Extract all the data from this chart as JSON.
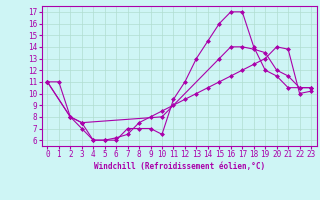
{
  "xlabel": "Windchill (Refroidissement éolien,°C)",
  "bg_color": "#cef5f5",
  "grid_color": "#b0ddd0",
  "line_color": "#aa00aa",
  "spine_color": "#aa00aa",
  "xlim": [
    -0.5,
    23.5
  ],
  "ylim": [
    5.5,
    17.5
  ],
  "xticks": [
    0,
    1,
    2,
    3,
    4,
    5,
    6,
    7,
    8,
    9,
    10,
    11,
    12,
    13,
    14,
    15,
    16,
    17,
    18,
    19,
    20,
    21,
    22,
    23
  ],
  "yticks": [
    6,
    7,
    8,
    9,
    10,
    11,
    12,
    13,
    14,
    15,
    16,
    17
  ],
  "line1_x": [
    0,
    1,
    2,
    3,
    4,
    5,
    6,
    7,
    8,
    9,
    10,
    11,
    12,
    13,
    14,
    15,
    16,
    17,
    18,
    19,
    20,
    21,
    22,
    23
  ],
  "line1_y": [
    11,
    11,
    8,
    7,
    6,
    6,
    6,
    7,
    7,
    7,
    6.5,
    9.5,
    11,
    13,
    14.5,
    16,
    17,
    17,
    14,
    12,
    11.5,
    10.5,
    10.5,
    10.5
  ],
  "line2_x": [
    0,
    2,
    3,
    10,
    15,
    16,
    17,
    18,
    19,
    20,
    21,
    22,
    23
  ],
  "line2_y": [
    11,
    8,
    7.5,
    8,
    13,
    14,
    14,
    13.8,
    13.5,
    12,
    11.5,
    10.5,
    10.5
  ],
  "line3_x": [
    0,
    2,
    3,
    4,
    5,
    6,
    7,
    8,
    9,
    10,
    11,
    12,
    13,
    14,
    15,
    16,
    17,
    18,
    19,
    20,
    21,
    22,
    23
  ],
  "line3_y": [
    11,
    8,
    7.5,
    6,
    6,
    6.2,
    6.5,
    7.5,
    8,
    8.5,
    9,
    9.5,
    10,
    10.5,
    11,
    11.5,
    12,
    12.5,
    13,
    14,
    13.8,
    10,
    10.2
  ],
  "tick_fontsize": 5.5,
  "xlabel_fontsize": 5.5
}
